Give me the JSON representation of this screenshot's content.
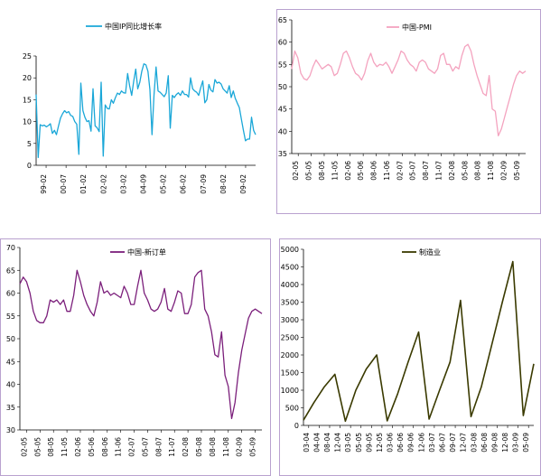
{
  "chart_data": [
    {
      "id": "ip",
      "type": "line",
      "series": [
        {
          "name": "中国IP同比增长率",
          "color": "#1aa7d8"
        }
      ],
      "ylim": [
        0,
        25
      ],
      "yticks": [
        0,
        5,
        10,
        15,
        20,
        25
      ],
      "xticks": [
        "99-02",
        "00-07",
        "01-02",
        "02-02",
        "03-02",
        "04-09",
        "05-02",
        "06-02",
        "07-09",
        "08-02",
        "09-02"
      ],
      "values": [
        16.2,
        1.8,
        9.3,
        9.0,
        9.2,
        8.8,
        9.1,
        9.5,
        7.3,
        8.0,
        7.0,
        9.0,
        10.8,
        11.8,
        12.5,
        12.0,
        12.3,
        11.4,
        11.2,
        10.0,
        9.4,
        2.5,
        18.8,
        12.5,
        11.0,
        10.0,
        10.2,
        7.8,
        17.5,
        9.0,
        8.6,
        7.7,
        19.0,
        2.1,
        13.8,
        13.0,
        12.9,
        15.0,
        14.2,
        15.5,
        16.5,
        16.2,
        17.0,
        16.6,
        16.5,
        21.0,
        18.2,
        16.0,
        19.2,
        22.0,
        17.5,
        19.0,
        21.5,
        23.2,
        23.0,
        21.5,
        17.3,
        7.0,
        16.0,
        22.5,
        17.0,
        16.7,
        16.2,
        15.7,
        16.5,
        20.5,
        8.5,
        16.0,
        15.5,
        16.2,
        16.6,
        16.0,
        17.0,
        16.2,
        16.2,
        15.6,
        20.0,
        17.5,
        17.0,
        16.7,
        16.0,
        17.8,
        19.3,
        14.3,
        15.0,
        18.5,
        17.2,
        16.8,
        19.6,
        18.8,
        19.0,
        18.6,
        17.5,
        17.0,
        16.5,
        18.2,
        15.5,
        17.0,
        15.3,
        14.2,
        13.2,
        10.5,
        8.0,
        5.6,
        6.0,
        6.0,
        11.0,
        8.0,
        7.0
      ]
    },
    {
      "id": "pmi",
      "type": "line",
      "series": [
        {
          "name": "中国-PMI",
          "color": "#f4a3bf"
        }
      ],
      "ylim": [
        35,
        65
      ],
      "yticks": [
        35,
        40,
        45,
        50,
        55,
        60,
        65
      ],
      "xticks": [
        "02-05",
        "05-05",
        "08-05",
        "11-05",
        "02-06",
        "05-06",
        "08-06",
        "11-06",
        "02-07",
        "05-07",
        "08-07",
        "11-07",
        "02-08",
        "05-08",
        "08-08",
        "11-08",
        "02-09",
        "05-09"
      ],
      "values": [
        54.0,
        58.0,
        56.5,
        53.0,
        51.8,
        51.5,
        52.5,
        54.5,
        56.0,
        55.0,
        54.0,
        54.5,
        55.0,
        54.5,
        52.5,
        53.0,
        55.0,
        57.5,
        58.0,
        56.5,
        54.5,
        53.0,
        52.5,
        51.5,
        53.0,
        55.8,
        57.5,
        55.5,
        54.5,
        55.0,
        54.8,
        55.5,
        54.5,
        53.0,
        54.5,
        56.0,
        58.0,
        57.5,
        56.0,
        55.0,
        54.5,
        53.5,
        55.5,
        56.0,
        55.5,
        54.0,
        53.5,
        53.0,
        54.0,
        57.0,
        57.5,
        55.0,
        55.0,
        53.5,
        54.5,
        54.0,
        57.0,
        59.0,
        59.5,
        58.0,
        55.0,
        52.5,
        50.5,
        48.5,
        48.0,
        52.5,
        45.0,
        44.5,
        39.0,
        40.5,
        43.0,
        45.5,
        48.0,
        50.5,
        52.5,
        53.5,
        53.0,
        53.5
      ],
      "xlabel": "",
      "ylabel": ""
    },
    {
      "id": "orders",
      "type": "line",
      "series": [
        {
          "name": "中国-新订单",
          "color": "#7b1f7b"
        }
      ],
      "ylim": [
        30,
        70
      ],
      "yticks": [
        30,
        35,
        40,
        45,
        50,
        55,
        60,
        65,
        70
      ],
      "xticks": [
        "02-05",
        "05-05",
        "08-05",
        "11-05",
        "02-06",
        "05-06",
        "08-06",
        "11-06",
        "02-07",
        "05-07",
        "08-07",
        "11-07",
        "02-08",
        "05-08",
        "08-08",
        "11-08",
        "02-09",
        "05-09"
      ],
      "values": [
        62.0,
        63.5,
        62.5,
        60.0,
        56.0,
        54.0,
        53.5,
        53.5,
        55.0,
        58.5,
        58.0,
        58.5,
        57.5,
        58.5,
        56.0,
        56.0,
        59.5,
        65.0,
        62.5,
        59.5,
        57.5,
        56.0,
        55.0,
        58.0,
        62.5,
        60.0,
        60.5,
        59.5,
        60.0,
        59.5,
        59.0,
        61.5,
        60.0,
        57.5,
        57.5,
        61.5,
        65.0,
        60.0,
        58.5,
        56.5,
        56.0,
        56.5,
        58.0,
        61.0,
        56.5,
        56.0,
        58.0,
        60.5,
        60.0,
        55.5,
        55.5,
        57.5,
        63.5,
        64.5,
        65.0,
        56.5,
        55.0,
        51.5,
        46.5,
        46.0,
        51.5,
        42.0,
        39.5,
        32.5,
        36.0,
        42.5,
        47.5,
        51.0,
        54.5,
        56.0,
        56.5,
        56.0,
        55.5
      ],
      "xlabel": "",
      "ylabel": ""
    },
    {
      "id": "mfg",
      "type": "line",
      "series": [
        {
          "name": "制造业",
          "color": "#3a3a00"
        }
      ],
      "ylim": [
        0,
        5000
      ],
      "yticks": [
        0,
        500,
        1000,
        1500,
        2000,
        2500,
        3000,
        3500,
        4000,
        4500,
        5000
      ],
      "xticks": [
        "03-04",
        "04-04",
        "08-04",
        "12-04",
        "03-05",
        "05-05",
        "09-05",
        "12-05",
        "03-06",
        "06-06",
        "09-06",
        "12-06",
        "03-07",
        "06-07",
        "09-07",
        "12-07",
        "03-08",
        "06-08",
        "09-08",
        "12-08",
        "03-09",
        "05-09"
      ],
      "values": [
        150,
        650,
        1100,
        1450,
        120,
        1000,
        1600,
        2000,
        130,
        900,
        1800,
        2650,
        180,
        1000,
        1800,
        3550,
        250,
        1100,
        2300,
        3500,
        4650,
        280,
        1750
      ],
      "xlabel": "",
      "ylabel": ""
    }
  ]
}
